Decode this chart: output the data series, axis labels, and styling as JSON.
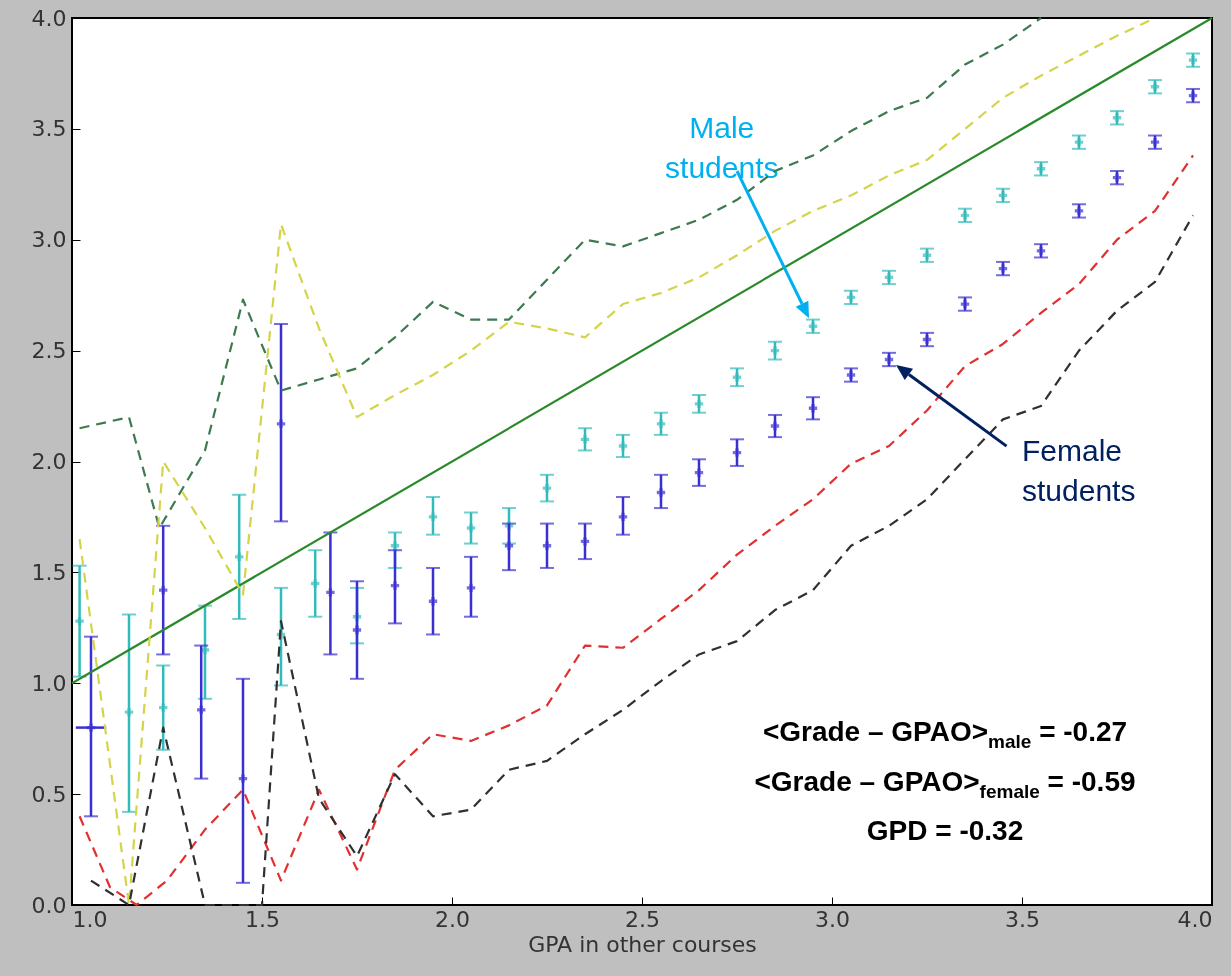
{
  "chart_data": {
    "type": "scatter",
    "xlabel": "GPA in other courses",
    "xlim": [
      1.0,
      4.0
    ],
    "ylim": [
      0.0,
      4.0
    ],
    "xticks": [
      {
        "value": 1,
        "label": "1.0"
      },
      {
        "value": 1.5,
        "label": "1.5"
      },
      {
        "value": 2,
        "label": "2.0"
      },
      {
        "value": 2.5,
        "label": "2.5"
      },
      {
        "value": 3,
        "label": "3.0"
      },
      {
        "value": 3.5,
        "label": "3.5"
      },
      {
        "value": 4,
        "label": "4.0"
      }
    ],
    "yticks": [
      {
        "value": 0,
        "label": "0.0"
      },
      {
        "value": 0.5,
        "label": "0.5"
      },
      {
        "value": 1,
        "label": "1.0"
      },
      {
        "value": 1.5,
        "label": "1.5"
      },
      {
        "value": 2,
        "label": "2.0"
      },
      {
        "value": 2.5,
        "label": "2.5"
      },
      {
        "value": 3,
        "label": "3.0"
      },
      {
        "value": 3.5,
        "label": "3.5"
      },
      {
        "value": 4,
        "label": "4.0"
      }
    ],
    "grid": false,
    "marker": "cross",
    "series": [
      {
        "color": "#33bbbb",
        "x": [
          1.02,
          1.15,
          1.24,
          1.35,
          1.44,
          1.55,
          1.64,
          1.75,
          1.85,
          1.95,
          2.05,
          2.15,
          2.25,
          2.35,
          2.45,
          2.55,
          2.65,
          2.75,
          2.85,
          2.95,
          3.05,
          3.15,
          3.25,
          3.35,
          3.45,
          3.55,
          3.65,
          3.75,
          3.85,
          3.95
        ],
        "values": [
          1.28,
          0.87,
          0.89,
          1.15,
          1.57,
          1.22,
          1.45,
          1.3,
          1.62,
          1.75,
          1.7,
          1.71,
          1.88,
          2.1,
          2.07,
          2.17,
          2.26,
          2.38,
          2.5,
          2.61,
          2.74,
          2.83,
          2.93,
          3.11,
          3.2,
          3.32,
          3.44,
          3.55,
          3.69,
          3.81
        ],
        "errors": [
          [
            1.03,
            1.53
          ],
          [
            0.42,
            1.31
          ],
          [
            0.7,
            1.08
          ],
          [
            0.93,
            1.35
          ],
          [
            1.29,
            1.85
          ],
          [
            0.99,
            1.43
          ],
          [
            1.3,
            1.6
          ],
          [
            1.18,
            1.43
          ],
          [
            1.52,
            1.68
          ],
          [
            1.67,
            1.84
          ],
          [
            1.63,
            1.77
          ],
          [
            1.63,
            1.79
          ],
          [
            1.82,
            1.94
          ],
          [
            2.05,
            2.15
          ],
          [
            2.02,
            2.12
          ],
          [
            2.12,
            2.22
          ],
          [
            2.22,
            2.3
          ],
          [
            2.34,
            2.42
          ],
          [
            2.46,
            2.54
          ],
          [
            2.58,
            2.64
          ],
          0.03,
          0.03,
          0.03,
          0.03,
          0.03,
          0.03,
          0.03,
          0.03,
          0.03,
          0.03
        ]
      },
      {
        "color": "#3a2fd0",
        "x": [
          1.05,
          1.24,
          1.34,
          1.45,
          1.55,
          1.68,
          1.75,
          1.85,
          1.95,
          2.05,
          2.15,
          2.25,
          2.35,
          2.45,
          2.55,
          2.65,
          2.75,
          2.85,
          2.95,
          3.05,
          3.15,
          3.25,
          3.35,
          3.45,
          3.55,
          3.65,
          3.75,
          3.85,
          3.95
        ],
        "values": [
          0.8,
          1.42,
          0.88,
          0.57,
          2.17,
          1.41,
          1.24,
          1.44,
          1.37,
          1.43,
          1.62,
          1.62,
          1.64,
          1.75,
          1.86,
          1.95,
          2.04,
          2.16,
          2.24,
          2.39,
          2.46,
          2.55,
          2.71,
          2.87,
          2.95,
          3.13,
          3.28,
          3.44,
          3.65
        ],
        "errors": [
          [
            0.4,
            1.21
          ],
          [
            1.13,
            1.71
          ],
          [
            0.57,
            1.17
          ],
          [
            0.1,
            1.02
          ],
          [
            1.73,
            2.62
          ],
          [
            1.13,
            1.68
          ],
          [
            1.02,
            1.46
          ],
          [
            1.27,
            1.6
          ],
          [
            1.22,
            1.52
          ],
          [
            1.3,
            1.57
          ],
          [
            1.51,
            1.72
          ],
          [
            1.52,
            1.72
          ],
          [
            1.56,
            1.72
          ],
          [
            1.67,
            1.84
          ],
          [
            1.79,
            1.94
          ],
          [
            1.89,
            2.01
          ],
          [
            1.98,
            2.1
          ],
          [
            2.11,
            2.21
          ],
          [
            2.19,
            2.29
          ],
          0.03,
          0.03,
          0.03,
          0.03,
          0.03,
          0.03,
          0.03,
          0.03,
          0.03,
          0.03
        ],
        "xerrors": [
          0.04,
          null,
          null,
          null,
          null,
          null,
          null,
          null,
          null,
          null,
          null,
          null,
          null,
          null,
          null,
          null,
          null,
          null,
          null,
          null,
          null,
          null,
          null,
          null,
          null,
          null,
          null,
          null,
          null
        ]
      },
      {
        "type": "line",
        "color": "#2a8a2a",
        "line_style": "solid",
        "marker": "none",
        "x": [
          1.0,
          4.0
        ],
        "values": [
          1.0,
          4.0
        ]
      },
      {
        "type": "line",
        "color": "#3d7a50",
        "line_style": "dashed",
        "marker": "none",
        "x": [
          1.02,
          1.15,
          1.23,
          1.35,
          1.45,
          1.55,
          1.65,
          1.75,
          1.85,
          1.95,
          2.05,
          2.15,
          2.25,
          2.35,
          2.45,
          2.55,
          2.65,
          2.75,
          2.85,
          2.95,
          3.05,
          3.15,
          3.25,
          3.35,
          3.45,
          3.55
        ],
        "values": [
          2.15,
          2.2,
          1.7,
          2.05,
          2.73,
          2.32,
          2.37,
          2.42,
          2.56,
          2.72,
          2.64,
          2.64,
          2.82,
          3.0,
          2.97,
          3.03,
          3.09,
          3.18,
          3.31,
          3.38,
          3.49,
          3.58,
          3.64,
          3.79,
          3.88,
          4.0
        ]
      },
      {
        "type": "line",
        "color": "#d4d44a",
        "line_style": "dashed",
        "marker": "none",
        "x": [
          1.02,
          1.15,
          1.24,
          1.35,
          1.45,
          1.55,
          1.65,
          1.75,
          1.85,
          1.95,
          2.05,
          2.15,
          2.25,
          2.35,
          2.45,
          2.55,
          2.65,
          2.75,
          2.85,
          2.95,
          3.05,
          3.15,
          3.25,
          3.35,
          3.45,
          3.55,
          3.65,
          3.75,
          3.85
        ],
        "values": [
          1.65,
          0.0,
          2.0,
          1.7,
          1.4,
          3.07,
          2.6,
          2.2,
          2.3,
          2.39,
          2.5,
          2.63,
          2.6,
          2.56,
          2.71,
          2.76,
          2.83,
          2.93,
          3.04,
          3.13,
          3.2,
          3.29,
          3.36,
          3.5,
          3.64,
          3.74,
          3.83,
          3.92,
          4.0
        ]
      },
      {
        "type": "line",
        "color": "#e03030",
        "line_style": "dashed",
        "marker": "none",
        "x": [
          1.02,
          1.1,
          1.17,
          1.25,
          1.35,
          1.45,
          1.55,
          1.65,
          1.75,
          1.85,
          1.95,
          2.05,
          2.15,
          2.25,
          2.35,
          2.45,
          2.55,
          2.65,
          2.75,
          2.85,
          2.95,
          3.05,
          3.15,
          3.25,
          3.35,
          3.45,
          3.55,
          3.65,
          3.75,
          3.85,
          3.95
        ],
        "values": [
          0.4,
          0.08,
          0.0,
          0.11,
          0.34,
          0.52,
          0.11,
          0.52,
          0.16,
          0.61,
          0.77,
          0.74,
          0.81,
          0.9,
          1.17,
          1.16,
          1.29,
          1.42,
          1.58,
          1.71,
          1.83,
          1.99,
          2.07,
          2.23,
          2.43,
          2.53,
          2.67,
          2.8,
          3.0,
          3.13,
          3.38
        ]
      },
      {
        "type": "line",
        "color": "#303030",
        "line_style": "dashed",
        "marker": "none",
        "x": [
          1.05,
          1.15,
          1.24,
          1.35,
          1.5,
          1.55,
          1.65,
          1.75,
          1.85,
          1.95,
          2.05,
          2.15,
          2.25,
          2.35,
          2.45,
          2.55,
          2.65,
          2.75,
          2.85,
          2.95,
          3.05,
          3.15,
          3.25,
          3.35,
          3.45,
          3.55,
          3.65,
          3.75,
          3.85,
          3.95
        ],
        "values": [
          0.11,
          0.0,
          0.8,
          0.0,
          0.0,
          1.28,
          0.48,
          0.22,
          0.59,
          0.4,
          0.43,
          0.61,
          0.65,
          0.77,
          0.88,
          1.01,
          1.13,
          1.19,
          1.33,
          1.42,
          1.62,
          1.71,
          1.83,
          2.01,
          2.19,
          2.25,
          2.5,
          2.68,
          2.81,
          3.11
        ]
      }
    ],
    "annotations": [
      "Male students",
      "Female students",
      "<Grade – GPAO>$_{male}$ = -0.27",
      "<Grade – GPAO>$_{female}$ = -0.59",
      "GPD = -0.32"
    ]
  }
}
